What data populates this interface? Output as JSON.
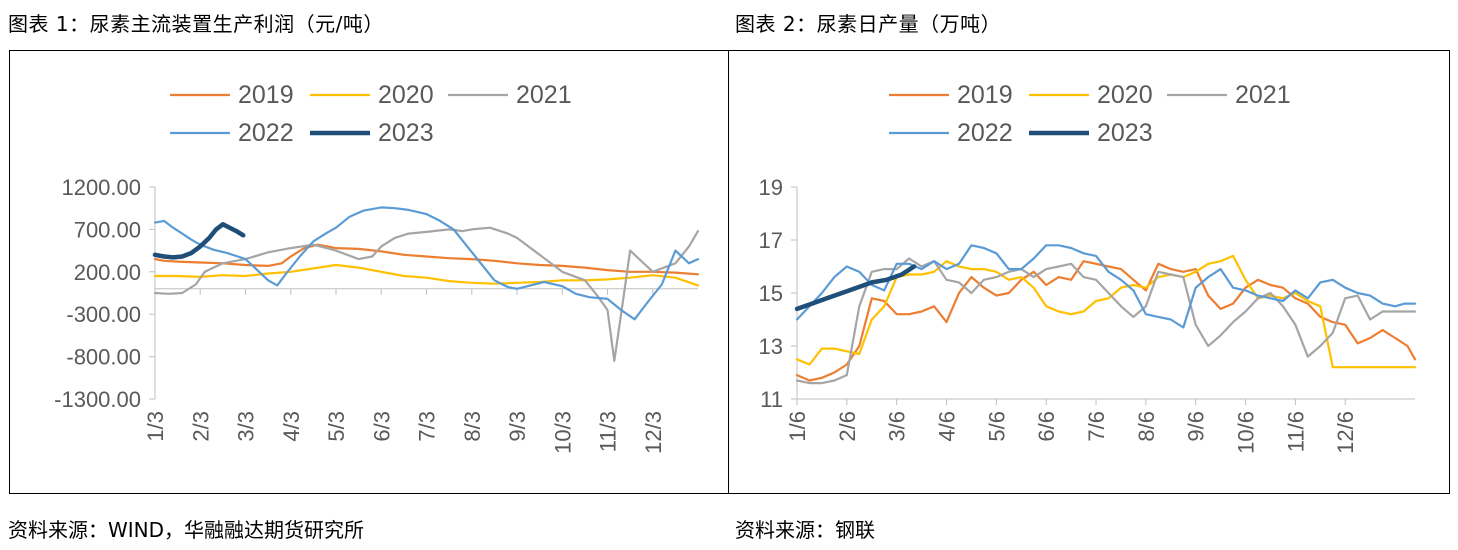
{
  "charts": [
    {
      "title": "图表 1：尿素主流装置生产利润（元/吨）",
      "source": "资料来源：WIND，华融融达期货研究所"
    },
    {
      "title": "图表 2：尿素日产量（万吨）",
      "source": "资料来源：钢联"
    }
  ],
  "chart_data": [
    {
      "type": "line",
      "title": "图表 1：尿素主流装置生产利润（元/吨）",
      "xlabel": "",
      "ylabel": "",
      "unit": "元/吨",
      "ylim": [
        -1300,
        1200
      ],
      "yticks": [
        1200,
        700,
        200,
        -300,
        -800,
        -1300
      ],
      "ytick_labels": [
        "1200.00",
        "700.00",
        "200.00",
        "-300.00",
        "-800.00",
        "-1300.00"
      ],
      "x_range": [
        0,
        12
      ],
      "xticks": [
        0,
        1,
        2,
        3,
        4,
        5,
        6,
        7,
        8,
        9,
        10,
        11
      ],
      "xtick_labels": [
        "1/3",
        "2/3",
        "3/3",
        "4/3",
        "5/3",
        "6/3",
        "7/3",
        "8/3",
        "9/3",
        "10/3",
        "11/3",
        "12/3"
      ],
      "legend": {
        "position": "top-center",
        "entries": [
          "2019",
          "2020",
          "2021",
          "2022",
          "2023"
        ]
      },
      "series": [
        {
          "name": "2019",
          "color": "#ED7D31",
          "width": 2.2,
          "x": [
            0,
            0.2,
            0.5,
            1.0,
            1.5,
            2.0,
            2.5,
            2.8,
            3.0,
            3.3,
            3.6,
            4.0,
            4.5,
            5.0,
            5.5,
            6.0,
            6.5,
            7.0,
            7.5,
            8.0,
            8.5,
            9.0,
            9.5,
            10.0,
            10.5,
            11.0,
            11.5,
            12.0
          ],
          "y": [
            350,
            330,
            320,
            310,
            300,
            280,
            270,
            300,
            380,
            480,
            520,
            480,
            470,
            440,
            400,
            380,
            360,
            350,
            330,
            300,
            280,
            270,
            250,
            220,
            200,
            200,
            190,
            170
          ]
        },
        {
          "name": "2020",
          "color": "#FFC000",
          "width": 2.2,
          "x": [
            0,
            0.5,
            1.0,
            1.5,
            2.0,
            2.5,
            3.0,
            3.5,
            4.0,
            4.5,
            5.0,
            5.5,
            6.0,
            6.5,
            7.0,
            7.5,
            8.0,
            8.5,
            9.0,
            9.5,
            10.0,
            10.5,
            11.0,
            11.5,
            12.0
          ],
          "y": [
            150,
            150,
            140,
            160,
            150,
            180,
            200,
            240,
            280,
            250,
            200,
            150,
            130,
            90,
            70,
            60,
            70,
            80,
            100,
            100,
            110,
            130,
            160,
            130,
            40
          ]
        },
        {
          "name": "2021",
          "color": "#A5A5A5",
          "width": 2.2,
          "x": [
            0,
            0.3,
            0.6,
            0.9,
            1.1,
            1.5,
            2.0,
            2.5,
            3.0,
            3.5,
            4.0,
            4.5,
            4.8,
            5.0,
            5.3,
            5.6,
            6.0,
            6.5,
            6.8,
            7.0,
            7.4,
            7.8,
            8.0,
            8.5,
            9.0,
            9.5,
            9.8,
            10.0,
            10.15,
            10.3,
            10.5,
            11.0,
            11.5,
            11.8,
            12.0
          ],
          "y": [
            -50,
            -60,
            -50,
            50,
            200,
            300,
            350,
            430,
            480,
            520,
            450,
            350,
            380,
            500,
            600,
            650,
            670,
            700,
            680,
            700,
            720,
            650,
            600,
            400,
            200,
            100,
            -100,
            -250,
            -850,
            -300,
            450,
            200,
            300,
            500,
            680
          ]
        },
        {
          "name": "2022",
          "color": "#5B9BD5",
          "width": 2.2,
          "x": [
            0,
            0.2,
            0.4,
            0.6,
            0.8,
            1.0,
            1.3,
            1.6,
            2.0,
            2.2,
            2.5,
            2.7,
            2.9,
            3.2,
            3.5,
            3.8,
            4.0,
            4.3,
            4.6,
            5.0,
            5.3,
            5.6,
            6.0,
            6.3,
            6.6,
            6.9,
            7.2,
            7.5,
            7.8,
            8.0,
            8.3,
            8.6,
            9.0,
            9.3,
            9.6,
            10.0,
            10.3,
            10.6,
            10.9,
            11.2,
            11.5,
            11.8,
            12.0
          ],
          "y": [
            780,
            800,
            720,
            650,
            580,
            520,
            460,
            420,
            350,
            250,
            100,
            40,
            180,
            380,
            560,
            660,
            720,
            850,
            920,
            960,
            950,
            930,
            880,
            800,
            700,
            500,
            300,
            100,
            20,
            0,
            40,
            80,
            30,
            -60,
            -100,
            -120,
            -250,
            -360,
            -150,
            50,
            450,
            300,
            350
          ]
        },
        {
          "name": "2023",
          "color": "#1F4E79",
          "width": 4.5,
          "x": [
            0,
            0.2,
            0.4,
            0.6,
            0.8,
            1.0,
            1.2,
            1.35,
            1.5,
            1.65,
            1.8,
            1.95
          ],
          "y": [
            400,
            380,
            370,
            380,
            420,
            500,
            600,
            700,
            760,
            720,
            680,
            630
          ]
        }
      ]
    },
    {
      "type": "line",
      "title": "图表 2：尿素日产量（万吨）",
      "xlabel": "",
      "ylabel": "",
      "unit": "万吨",
      "ylim": [
        11,
        19
      ],
      "yticks": [
        11,
        13,
        15,
        17,
        19
      ],
      "ytick_labels": [
        "11",
        "13",
        "15",
        "17",
        "19"
      ],
      "x_range": [
        0,
        12.4
      ],
      "xticks": [
        0,
        1,
        2,
        3,
        4,
        5,
        6,
        7,
        8,
        9,
        10,
        11
      ],
      "xtick_labels": [
        "1/6",
        "2/6",
        "3/6",
        "4/6",
        "5/6",
        "6/6",
        "7/6",
        "8/6",
        "9/6",
        "10/6",
        "11/6",
        "12/6"
      ],
      "legend": {
        "position": "top-center",
        "entries": [
          "2019",
          "2020",
          "2021",
          "2022",
          "2023"
        ]
      },
      "series": [
        {
          "name": "2019",
          "color": "#ED7D31",
          "width": 2.2,
          "x": [
            0,
            0.25,
            0.5,
            0.75,
            1.0,
            1.25,
            1.5,
            1.75,
            2.0,
            2.25,
            2.5,
            2.75,
            3.0,
            3.25,
            3.5,
            3.75,
            4.0,
            4.25,
            4.5,
            4.75,
            5.0,
            5.25,
            5.5,
            5.75,
            6.0,
            6.25,
            6.5,
            6.75,
            7.0,
            7.25,
            7.5,
            7.75,
            8.0,
            8.25,
            8.5,
            8.75,
            9.0,
            9.25,
            9.5,
            9.75,
            10.0,
            10.25,
            10.5,
            10.75,
            11.0,
            11.25,
            11.5,
            11.75,
            12.0,
            12.25,
            12.4
          ],
          "y": [
            11.9,
            11.7,
            11.8,
            12.0,
            12.3,
            13.0,
            14.8,
            14.7,
            14.2,
            14.2,
            14.3,
            14.5,
            13.9,
            15.0,
            15.6,
            15.2,
            14.9,
            15.0,
            15.5,
            15.8,
            15.3,
            15.6,
            15.5,
            16.2,
            16.1,
            16.0,
            15.9,
            15.5,
            15.1,
            16.1,
            15.9,
            15.8,
            15.9,
            14.9,
            14.4,
            14.6,
            15.2,
            15.5,
            15.3,
            15.2,
            14.8,
            14.6,
            14.1,
            13.9,
            13.8,
            13.1,
            13.3,
            13.6,
            13.3,
            13.0,
            12.5
          ]
        },
        {
          "name": "2020",
          "color": "#FFC000",
          "width": 2.2,
          "x": [
            0,
            0.25,
            0.5,
            0.75,
            1.0,
            1.25,
            1.5,
            1.75,
            2.0,
            2.25,
            2.5,
            2.75,
            3.0,
            3.25,
            3.5,
            3.75,
            4.0,
            4.25,
            4.5,
            4.75,
            5.0,
            5.25,
            5.5,
            5.75,
            6.0,
            6.25,
            6.5,
            6.75,
            7.0,
            7.25,
            7.5,
            7.75,
            8.0,
            8.25,
            8.5,
            8.75,
            9.0,
            9.25,
            9.5,
            9.75,
            10.0,
            10.25,
            10.5,
            10.75,
            11.0,
            11.25,
            11.5,
            11.75,
            12.0,
            12.2,
            12.4
          ],
          "y": [
            12.5,
            12.3,
            12.9,
            12.9,
            12.8,
            12.7,
            14.0,
            14.5,
            15.6,
            15.7,
            15.7,
            15.8,
            16.2,
            16.0,
            15.9,
            15.9,
            15.8,
            15.5,
            15.6,
            15.2,
            14.5,
            14.3,
            14.2,
            14.3,
            14.7,
            14.8,
            15.2,
            15.3,
            15.2,
            15.6,
            15.7,
            15.6,
            15.8,
            16.1,
            16.2,
            16.4,
            15.5,
            14.8,
            14.9,
            14.8,
            15.0,
            14.7,
            14.5,
            12.2,
            12.2,
            12.2,
            12.2,
            12.2,
            12.2,
            12.2,
            12.2
          ]
        },
        {
          "name": "2021",
          "color": "#A5A5A5",
          "width": 2.2,
          "x": [
            0,
            0.25,
            0.5,
            0.75,
            1.0,
            1.25,
            1.5,
            1.75,
            2.0,
            2.25,
            2.5,
            2.75,
            3.0,
            3.25,
            3.5,
            3.75,
            4.0,
            4.25,
            4.5,
            4.75,
            5.0,
            5.25,
            5.5,
            5.75,
            6.0,
            6.25,
            6.5,
            6.75,
            7.0,
            7.25,
            7.5,
            7.75,
            8.0,
            8.25,
            8.5,
            8.75,
            9.0,
            9.25,
            9.5,
            9.75,
            10.0,
            10.25,
            10.5,
            10.75,
            11.0,
            11.25,
            11.5,
            11.75,
            12.0,
            12.2,
            12.4
          ],
          "y": [
            11.7,
            11.6,
            11.6,
            11.7,
            11.9,
            14.5,
            15.8,
            15.9,
            15.9,
            16.3,
            16.0,
            16.2,
            15.5,
            15.4,
            15.0,
            15.5,
            15.6,
            15.8,
            15.9,
            15.6,
            15.9,
            16.0,
            16.1,
            15.6,
            15.5,
            15.0,
            14.5,
            14.1,
            14.5,
            15.8,
            15.7,
            15.6,
            13.8,
            13.0,
            13.4,
            13.9,
            14.3,
            14.8,
            15.0,
            14.5,
            13.8,
            12.6,
            13.0,
            13.5,
            14.8,
            14.9,
            14.0,
            14.3,
            14.3,
            14.3,
            14.3
          ]
        },
        {
          "name": "2022",
          "color": "#5B9BD5",
          "width": 2.2,
          "x": [
            0,
            0.25,
            0.5,
            0.75,
            1.0,
            1.25,
            1.5,
            1.75,
            2.0,
            2.25,
            2.5,
            2.75,
            3.0,
            3.25,
            3.5,
            3.75,
            4.0,
            4.25,
            4.5,
            4.75,
            5.0,
            5.25,
            5.5,
            5.75,
            6.0,
            6.25,
            6.5,
            6.75,
            7.0,
            7.25,
            7.5,
            7.75,
            8.0,
            8.25,
            8.5,
            8.75,
            9.0,
            9.25,
            9.5,
            9.75,
            10.0,
            10.25,
            10.5,
            10.75,
            11.0,
            11.25,
            11.5,
            11.75,
            12.0,
            12.2,
            12.4
          ],
          "y": [
            14.0,
            14.5,
            15.0,
            15.6,
            16.0,
            15.8,
            15.3,
            15.1,
            16.1,
            16.1,
            15.9,
            16.2,
            15.9,
            16.1,
            16.8,
            16.7,
            16.5,
            15.9,
            15.9,
            16.3,
            16.8,
            16.8,
            16.7,
            16.5,
            16.4,
            15.8,
            15.5,
            15.1,
            14.2,
            14.1,
            14.0,
            13.7,
            15.2,
            15.6,
            15.9,
            15.2,
            15.1,
            14.9,
            14.8,
            14.7,
            15.1,
            14.8,
            15.4,
            15.5,
            15.2,
            15.0,
            14.9,
            14.6,
            14.5,
            14.6,
            14.6
          ]
        },
        {
          "name": "2023",
          "color": "#1F4E79",
          "width": 4.5,
          "x": [
            0,
            0.3,
            0.6,
            0.9,
            1.2,
            1.5,
            1.8,
            2.1,
            2.35
          ],
          "y": [
            14.4,
            14.6,
            14.8,
            15.0,
            15.2,
            15.4,
            15.5,
            15.7,
            16.0
          ]
        }
      ]
    }
  ]
}
